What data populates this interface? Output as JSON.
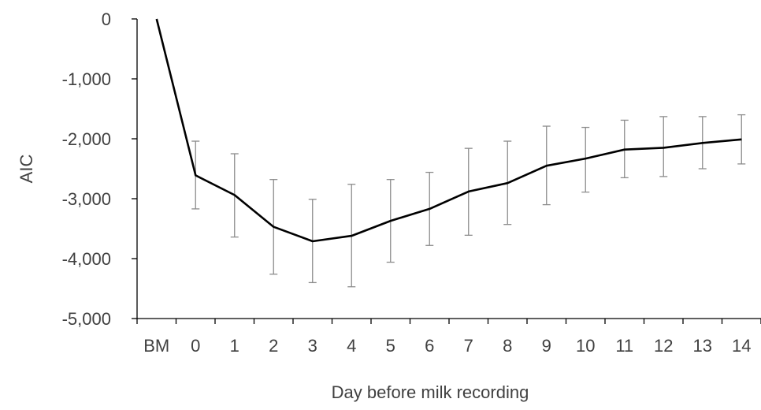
{
  "chart_data": {
    "type": "line",
    "title": "",
    "xlabel": "Day before milk recording",
    "ylabel": "AIC",
    "categories": [
      "BM",
      "0",
      "1",
      "2",
      "3",
      "4",
      "5",
      "6",
      "7",
      "8",
      "9",
      "10",
      "11",
      "12",
      "13",
      "14"
    ],
    "ylim": [
      -5000,
      0
    ],
    "yticks": [
      0,
      -1000,
      -2000,
      -3000,
      -4000,
      -5000
    ],
    "ytick_labels": [
      "0",
      "-1,000",
      "-2,000",
      "-3,000",
      "-4,000",
      "-5,000"
    ],
    "grid": false,
    "legend": "none",
    "series": [
      {
        "values": [
          0,
          -2610,
          -2940,
          -3470,
          -3710,
          -3620,
          -3370,
          -3170,
          -2880,
          -2740,
          -2450,
          -2330,
          -2180,
          -2150,
          -2070,
          -2010
        ],
        "error_low": [
          null,
          -3170,
          -3640,
          -4260,
          -4400,
          -4470,
          -4060,
          -3780,
          -3610,
          -3430,
          -3100,
          -2890,
          -2650,
          -2630,
          -2500,
          -2420
        ],
        "error_high": [
          null,
          -2040,
          -2250,
          -2680,
          -3010,
          -2760,
          -2680,
          -2560,
          -2160,
          -2040,
          -1790,
          -1810,
          -1690,
          -1630,
          -1630,
          -1600
        ],
        "color": "#000000",
        "error_color": "#8c8c8c"
      }
    ]
  }
}
